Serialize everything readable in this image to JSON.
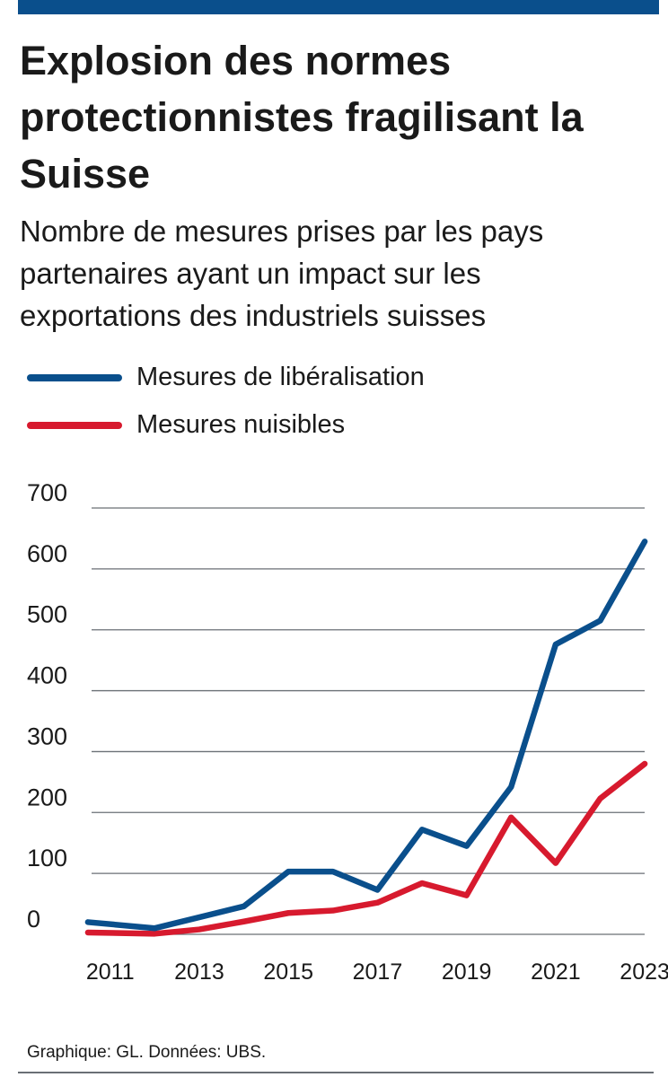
{
  "header": {
    "title": "Explosion des normes protectionnistes fragilisant la Suisse",
    "subtitle": "Nombre de mesures prises par les pays partenaires ayant un impact sur les exportations des industriels suisses"
  },
  "footer": {
    "source": "Graphique: GL. Données: UBS."
  },
  "colors": {
    "bar": "#0a4f8c",
    "liberalisation": "#0a4f8c",
    "nuisibles": "#d71a2e",
    "grid": "#6a6f75"
  },
  "chart_data": {
    "type": "line",
    "x": [
      2010.5,
      2012,
      2014,
      2015,
      2016,
      2017,
      2018,
      2019,
      2020,
      2021,
      2022,
      2023
    ],
    "x_ticks": [
      "2011",
      "2013",
      "2015",
      "2017",
      "2019",
      "2021",
      "2023"
    ],
    "x_tick_values": [
      2011,
      2013,
      2015,
      2017,
      2019,
      2021,
      2023
    ],
    "y_ticks": [
      "0",
      "100",
      "200",
      "300",
      "400",
      "500",
      "600",
      "700"
    ],
    "y_tick_values": [
      0,
      100,
      200,
      300,
      400,
      500,
      600,
      700
    ],
    "ylim": [
      0,
      700
    ],
    "xlim": [
      2010.3,
      2023.3
    ],
    "grid": true,
    "legend_position": "top-left",
    "xlabel": "",
    "ylabel": "",
    "series": [
      {
        "name": "Mesures de libéralisation",
        "color": "#0a4f8c",
        "x": [
          2010.5,
          2012,
          2014,
          2015,
          2016,
          2017,
          2018,
          2019,
          2020,
          2021,
          2022,
          2023
        ],
        "values": [
          20,
          10,
          46,
          103,
          103,
          73,
          172,
          145,
          242,
          476,
          515,
          645
        ]
      },
      {
        "name": "Mesures nuisibles",
        "color": "#d71a2e",
        "x": [
          2010.5,
          2012,
          2013,
          2014,
          2015,
          2016,
          2017,
          2018,
          2019,
          2020,
          2021,
          2022,
          2023
        ],
        "values": [
          3,
          1,
          8,
          21,
          35,
          39,
          52,
          84,
          64,
          192,
          117,
          223,
          280
        ]
      }
    ]
  }
}
